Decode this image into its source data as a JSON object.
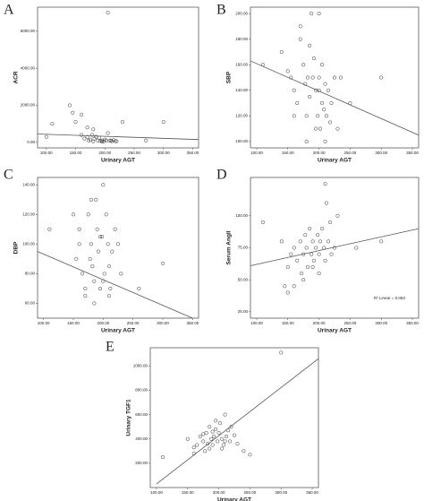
{
  "chart_data": [
    {
      "type": "scatter",
      "panel_label": "A",
      "x_label": "Urinary AGT",
      "y_label": "ACR",
      "xlim": [
        85,
        360
      ],
      "ylim": [
        -300,
        7300
      ],
      "xticks": [
        {
          "value": 100,
          "label": "100.00"
        },
        {
          "value": 150,
          "label": "150.00"
        },
        {
          "value": 200,
          "label": "200.00"
        },
        {
          "value": 250,
          "label": "250.00"
        },
        {
          "value": 300,
          "label": "300.00"
        },
        {
          "value": 350,
          "label": "350.00"
        }
      ],
      "yticks": [
        {
          "value": 0,
          "label": "0.00"
        },
        {
          "value": 2000,
          "label": "2000.00"
        },
        {
          "value": 4000,
          "label": "4000.00"
        },
        {
          "value": 6000,
          "label": "6000.00"
        }
      ],
      "points": {
        "x": [
          100,
          140,
          145,
          150,
          160,
          165,
          170,
          172,
          175,
          178,
          180,
          182,
          185,
          188,
          190,
          192,
          195,
          198,
          200,
          202,
          205,
          208,
          210,
          212,
          215,
          218,
          220,
          170,
          180,
          205,
          230,
          300,
          270,
          110,
          160,
          195
        ],
        "y": [
          300,
          2000,
          1600,
          1100,
          1500,
          200,
          300,
          100,
          150,
          400,
          50,
          200,
          300,
          100,
          250,
          80,
          100,
          50,
          150,
          100,
          7000,
          80,
          100,
          60,
          120,
          60,
          60,
          800,
          700,
          500,
          1100,
          1100,
          100,
          1000,
          400,
          30
        ]
      },
      "fit": {
        "x": [
          85,
          360
        ],
        "y": [
          450,
          150
        ]
      }
    },
    {
      "type": "scatter",
      "panel_label": "B",
      "x_label": "Urinary AGT",
      "y_label": "SBP",
      "xlim": [
        90,
        360
      ],
      "ylim": [
        95,
        205
      ],
      "xticks": [
        {
          "value": 100,
          "label": "100.00"
        },
        {
          "value": 150,
          "label": "150.00"
        },
        {
          "value": 200,
          "label": "200.00"
        },
        {
          "value": 250,
          "label": "250.00"
        },
        {
          "value": 300,
          "label": "300.00"
        },
        {
          "value": 350,
          "label": "350.00"
        }
      ],
      "yticks": [
        {
          "value": 100,
          "label": "100.00"
        },
        {
          "value": 120,
          "label": "120.00"
        },
        {
          "value": 140,
          "label": "140.00"
        },
        {
          "value": 160,
          "label": "160.00"
        },
        {
          "value": 180,
          "label": "180.00"
        },
        {
          "value": 200,
          "label": "200.00"
        }
      ],
      "points": {
        "x": [
          110,
          140,
          150,
          155,
          160,
          165,
          170,
          175,
          178,
          180,
          182,
          185,
          188,
          190,
          192,
          195,
          198,
          200,
          200,
          202,
          205,
          205,
          208,
          210,
          212,
          215,
          218,
          220,
          225,
          230,
          235,
          250,
          300,
          170,
          185,
          195,
          210,
          160,
          180,
          200
        ],
        "y": [
          160,
          170,
          155,
          150,
          140,
          130,
          180,
          160,
          145,
          120,
          150,
          135,
          200,
          150,
          165,
          140,
          120,
          200,
          150,
          110,
          160,
          130,
          125,
          145,
          120,
          140,
          115,
          130,
          150,
          110,
          150,
          130,
          150,
          190,
          175,
          110,
          100,
          120,
          100,
          140
        ]
      },
      "fit": {
        "x": [
          90,
          360
        ],
        "y": [
          163,
          105
        ]
      }
    },
    {
      "type": "scatter",
      "panel_label": "C",
      "x_label": "Urinary AGT",
      "y_label": "DBP",
      "xlim": [
        90,
        360
      ],
      "ylim": [
        50,
        145
      ],
      "xticks": [
        {
          "value": 100,
          "label": "100.00"
        },
        {
          "value": 150,
          "label": "150.00"
        },
        {
          "value": 200,
          "label": "200.00"
        },
        {
          "value": 250,
          "label": "250.00"
        },
        {
          "value": 300,
          "label": "300.00"
        },
        {
          "value": 350,
          "label": "350.00"
        }
      ],
      "yticks": [
        {
          "value": 60,
          "label": "60.00"
        },
        {
          "value": 80,
          "label": "80.00"
        },
        {
          "value": 100,
          "label": "100.00"
        },
        {
          "value": 120,
          "label": "120.00"
        },
        {
          "value": 140,
          "label": "140.00"
        }
      ],
      "points": {
        "x": [
          110,
          150,
          155,
          160,
          165,
          170,
          175,
          178,
          180,
          182,
          185,
          188,
          190,
          192,
          195,
          198,
          200,
          202,
          205,
          208,
          210,
          212,
          215,
          220,
          225,
          230,
          300,
          260,
          170,
          185,
          195,
          200,
          210,
          180,
          160
        ],
        "y": [
          110,
          120,
          90,
          100,
          80,
          70,
          120,
          90,
          100,
          85,
          75,
          130,
          110,
          95,
          70,
          105,
          140,
          80,
          120,
          100,
          85,
          70,
          95,
          110,
          100,
          80,
          87,
          70,
          65,
          60,
          105,
          75,
          65,
          130,
          110
        ]
      },
      "fit": {
        "x": [
          90,
          350
        ],
        "y": [
          95,
          50
        ]
      }
    },
    {
      "type": "scatter",
      "panel_label": "D",
      "x_label": "Urinary AGT",
      "y_label": "Serum AngII",
      "annotation": "R² Linear = 0.063",
      "xlim": [
        90,
        360
      ],
      "ylim": [
        20,
        130
      ],
      "xticks": [
        {
          "value": 100,
          "label": "100.00"
        },
        {
          "value": 150,
          "label": "150.00"
        },
        {
          "value": 200,
          "label": "200.00"
        },
        {
          "value": 250,
          "label": "250.00"
        },
        {
          "value": 300,
          "label": "300.00"
        },
        {
          "value": 350,
          "label": "350.00"
        }
      ],
      "yticks": [
        {
          "value": 25,
          "label": "25.00"
        },
        {
          "value": 50,
          "label": "50.00"
        },
        {
          "value": 75,
          "label": "75.00"
        },
        {
          "value": 100,
          "label": "100.00"
        }
      ],
      "points": {
        "x": [
          110,
          140,
          150,
          155,
          160,
          165,
          170,
          172,
          175,
          178,
          180,
          182,
          185,
          188,
          190,
          192,
          195,
          198,
          200,
          202,
          205,
          208,
          210,
          212,
          215,
          218,
          220,
          225,
          230,
          260,
          300,
          160,
          175,
          190,
          200,
          210,
          150,
          145
        ],
        "y": [
          95,
          80,
          60,
          70,
          75,
          65,
          80,
          55,
          70,
          85,
          75,
          60,
          90,
          70,
          80,
          65,
          75,
          85,
          70,
          80,
          90,
          75,
          125,
          110,
          80,
          95,
          70,
          75,
          100,
          75,
          80,
          45,
          50,
          60,
          55,
          65,
          40,
          45
        ]
      },
      "fit": {
        "x": [
          90,
          360
        ],
        "y": [
          61,
          90
        ]
      }
    },
    {
      "type": "scatter",
      "panel_label": "E",
      "x_label": "Urinary AGT",
      "y_label": "Urinary TGF1",
      "xlim": [
        90,
        360
      ],
      "ylim": [
        0,
        1150
      ],
      "xticks": [
        {
          "value": 100,
          "label": "100.00"
        },
        {
          "value": 150,
          "label": "150.00"
        },
        {
          "value": 200,
          "label": "200.00"
        },
        {
          "value": 250,
          "label": "250.00"
        },
        {
          "value": 300,
          "label": "300.00"
        },
        {
          "value": 350,
          "label": "350.00"
        }
      ],
      "yticks": [
        {
          "value": 200,
          "label": "200.00"
        },
        {
          "value": 400,
          "label": "400.00"
        },
        {
          "value": 600,
          "label": "600.00"
        },
        {
          "value": 800,
          "label": "800.00"
        },
        {
          "value": 1000,
          "label": "1000.00"
        }
      ],
      "points": {
        "x": [
          110,
          150,
          160,
          165,
          170,
          175,
          178,
          180,
          182,
          185,
          188,
          190,
          192,
          195,
          198,
          200,
          202,
          205,
          208,
          210,
          212,
          215,
          218,
          220,
          225,
          230,
          240,
          250,
          300,
          175,
          185,
          195,
          205,
          210,
          190,
          160
        ],
        "y": [
          250,
          400,
          330,
          350,
          420,
          380,
          300,
          450,
          360,
          500,
          400,
          350,
          420,
          480,
          380,
          450,
          530,
          400,
          350,
          600,
          420,
          470,
          380,
          500,
          430,
          360,
          300,
          270,
          1110,
          440,
          320,
          550,
          320,
          380,
          460,
          280
        ]
      },
      "fit": {
        "x": [
          100,
          360
        ],
        "y": [
          30,
          1060
        ]
      }
    }
  ]
}
